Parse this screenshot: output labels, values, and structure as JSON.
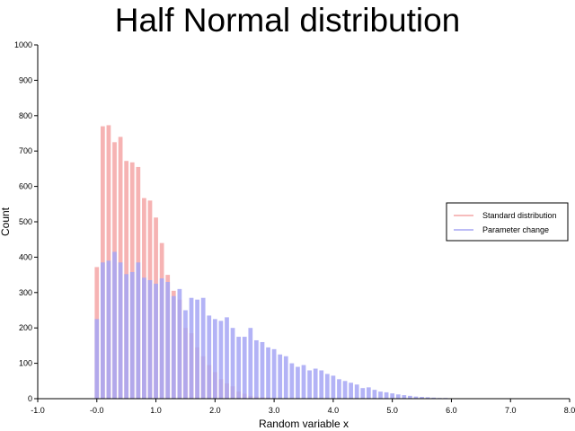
{
  "chart_data": {
    "type": "bar",
    "title": "Half Normal distribution",
    "xlabel": "Random variable x",
    "ylabel": "Count",
    "xlim": [
      -1.0,
      8.0
    ],
    "ylim": [
      0,
      1000
    ],
    "xticks": [
      -1.0,
      0.0,
      1.0,
      2.0,
      3.0,
      4.0,
      5.0,
      6.0,
      7.0,
      8.0
    ],
    "xtick_labels": [
      "-1.0",
      "-0.0",
      "1.0",
      "2.0",
      "3.0",
      "4.0",
      "5.0",
      "6.0",
      "7.0",
      "8.0"
    ],
    "yticks": [
      0,
      100,
      200,
      300,
      400,
      500,
      600,
      700,
      800,
      900,
      1000
    ],
    "ytick_labels": [
      "0",
      "100",
      "200",
      "300",
      "400",
      "500",
      "600",
      "700",
      "800",
      "900",
      "1000"
    ],
    "grid": false,
    "legend_position": "right",
    "series": [
      {
        "name": "Standard distribution",
        "color": "#f4a6a6",
        "opacity": 0.85,
        "bin_start": 0.0,
        "bin_width": 0.1,
        "values": [
          372,
          770,
          773,
          725,
          740,
          672,
          668,
          655,
          567,
          560,
          512,
          440,
          350,
          305,
          280,
          200,
          185,
          145,
          120,
          95,
          75,
          55,
          43,
          35,
          20,
          14,
          8,
          6,
          4,
          3,
          2,
          1
        ]
      },
      {
        "name": "Parameter change",
        "color": "#a6a6f4",
        "opacity": 0.85,
        "bin_start": 0.0,
        "bin_width": 0.1,
        "values": [
          225,
          385,
          390,
          415,
          385,
          352,
          358,
          385,
          342,
          335,
          325,
          340,
          330,
          290,
          310,
          250,
          285,
          280,
          285,
          235,
          225,
          220,
          230,
          200,
          175,
          175,
          200,
          165,
          160,
          145,
          140,
          125,
          120,
          100,
          90,
          95,
          80,
          85,
          80,
          70,
          65,
          55,
          50,
          45,
          40,
          30,
          32,
          25,
          20,
          18,
          15,
          12,
          10,
          8,
          6,
          5,
          4,
          3,
          2,
          2,
          1
        ]
      }
    ]
  }
}
